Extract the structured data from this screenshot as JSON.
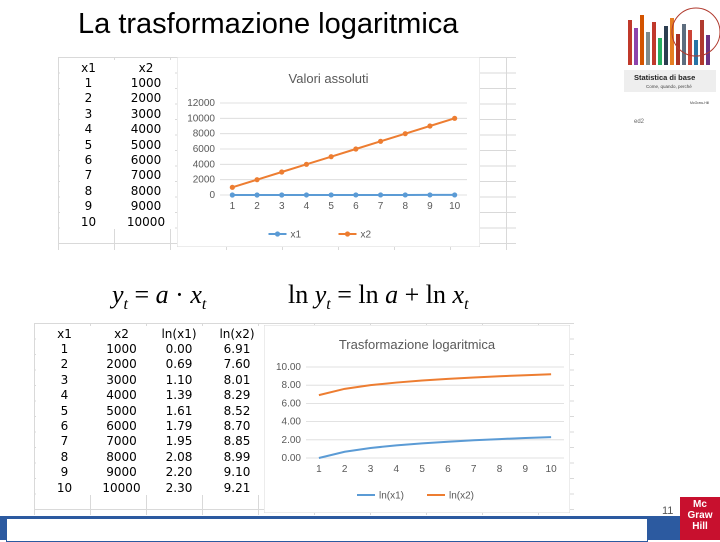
{
  "slide": {
    "title": "La trasformazione logaritmica",
    "page_number": "11"
  },
  "table_top": {
    "headers": [
      "x1",
      "x2"
    ],
    "rows": [
      [
        "1",
        "1000"
      ],
      [
        "2",
        "2000"
      ],
      [
        "3",
        "3000"
      ],
      [
        "4",
        "4000"
      ],
      [
        "5",
        "5000"
      ],
      [
        "6",
        "6000"
      ],
      [
        "7",
        "7000"
      ],
      [
        "8",
        "8000"
      ],
      [
        "9",
        "9000"
      ],
      [
        "10",
        "10000"
      ]
    ]
  },
  "table_bottom": {
    "headers": [
      "x1",
      "x2",
      "ln(x1)",
      "ln(x2)"
    ],
    "rows": [
      [
        "1",
        "1000",
        "0.00",
        "6.91"
      ],
      [
        "2",
        "2000",
        "0.69",
        "7.60"
      ],
      [
        "3",
        "3000",
        "1.10",
        "8.01"
      ],
      [
        "4",
        "4000",
        "1.39",
        "8.29"
      ],
      [
        "5",
        "5000",
        "1.61",
        "8.52"
      ],
      [
        "6",
        "6000",
        "1.79",
        "8.70"
      ],
      [
        "7",
        "7000",
        "1.95",
        "8.85"
      ],
      [
        "8",
        "8000",
        "2.08",
        "8.99"
      ],
      [
        "9",
        "9000",
        "2.20",
        "9.10"
      ],
      [
        "10",
        "10000",
        "2.30",
        "9.21"
      ]
    ]
  },
  "formulas": {
    "left": "y_t = a · x_t",
    "right": "ln y_t = ln a + ln x_t"
  },
  "book_cover": {
    "title": "Statistica di base",
    "subtitle": "Come, quando, perché",
    "publisher": "McGraw-Hill",
    "edition": "ed2"
  },
  "logo": {
    "lines": [
      "Mc",
      "Graw",
      "Hill"
    ]
  },
  "colors": {
    "x1": "#5b9bd5",
    "x2": "#ed7d31",
    "bar": "#2c5aa0",
    "logo": "#c8102e"
  },
  "chart_data": [
    {
      "type": "line",
      "title": "Valori assoluti",
      "x": [
        1,
        2,
        3,
        4,
        5,
        6,
        7,
        8,
        9,
        10
      ],
      "series": [
        {
          "name": "x1",
          "values": [
            1,
            2,
            3,
            4,
            5,
            6,
            7,
            8,
            9,
            10
          ]
        },
        {
          "name": "x2",
          "values": [
            1000,
            2000,
            3000,
            4000,
            5000,
            6000,
            7000,
            8000,
            9000,
            10000
          ]
        }
      ],
      "ylim": [
        0,
        12000
      ],
      "yticks": [
        "0",
        "2000",
        "4000",
        "6000",
        "8000",
        "10000",
        "12000"
      ],
      "xticks": [
        "1",
        "2",
        "3",
        "4",
        "5",
        "6",
        "7",
        "8",
        "9",
        "10"
      ],
      "legend": "bottom",
      "markers": true
    },
    {
      "type": "line",
      "title": "Trasformazione logaritmica",
      "x": [
        1,
        2,
        3,
        4,
        5,
        6,
        7,
        8,
        9,
        10
      ],
      "series": [
        {
          "name": "ln(x1)",
          "values": [
            0.0,
            0.69,
            1.1,
            1.39,
            1.61,
            1.79,
            1.95,
            2.08,
            2.2,
            2.3
          ]
        },
        {
          "name": "ln(x2)",
          "values": [
            6.91,
            7.6,
            8.01,
            8.29,
            8.52,
            8.7,
            8.85,
            8.99,
            9.1,
            9.21
          ]
        }
      ],
      "ylim": [
        0,
        10
      ],
      "yticks": [
        "0.00",
        "2.00",
        "4.00",
        "6.00",
        "8.00",
        "10.00"
      ],
      "xticks": [
        "1",
        "2",
        "3",
        "4",
        "5",
        "6",
        "7",
        "8",
        "9",
        "10"
      ],
      "legend": "bottom",
      "markers": false
    }
  ]
}
